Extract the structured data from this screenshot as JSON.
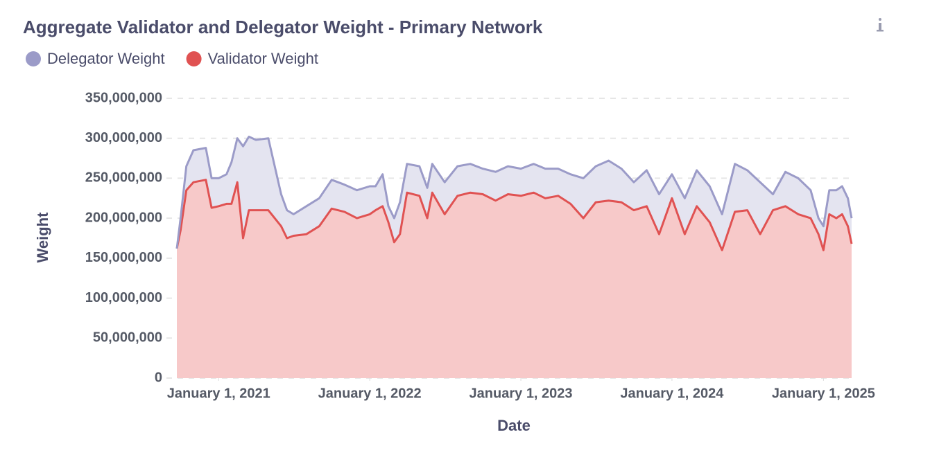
{
  "chart_data": {
    "type": "stacked_area",
    "title": "Aggregate Validator and Delegator Weight - Primary Network",
    "xlabel": "Date",
    "ylabel": "Weight",
    "x": [
      "2020-09-22",
      "2020-10-01",
      "2020-10-15",
      "2020-11-01",
      "2020-12-01",
      "2020-12-15",
      "2021-01-01",
      "2021-01-20",
      "2021-02-01",
      "2021-02-15",
      "2021-03-01",
      "2021-03-15",
      "2021-04-01",
      "2021-05-01",
      "2021-06-01",
      "2021-06-15",
      "2021-07-01",
      "2021-08-01",
      "2021-09-01",
      "2021-10-01",
      "2021-11-01",
      "2021-12-01",
      "2022-01-01",
      "2022-01-15",
      "2022-02-01",
      "2022-02-15",
      "2022-03-01",
      "2022-03-15",
      "2022-04-01",
      "2022-05-01",
      "2022-05-20",
      "2022-06-01",
      "2022-07-01",
      "2022-08-01",
      "2022-09-01",
      "2022-10-01",
      "2022-11-01",
      "2022-12-01",
      "2023-01-01",
      "2023-02-01",
      "2023-03-01",
      "2023-04-01",
      "2023-05-01",
      "2023-06-01",
      "2023-07-01",
      "2023-08-01",
      "2023-09-01",
      "2023-10-01",
      "2023-11-01",
      "2023-12-01",
      "2024-01-01",
      "2024-02-01",
      "2024-03-01",
      "2024-04-01",
      "2024-05-01",
      "2024-06-01",
      "2024-07-01",
      "2024-08-01",
      "2024-09-01",
      "2024-10-01",
      "2024-11-01",
      "2024-12-01",
      "2024-12-20",
      "2025-01-01",
      "2025-01-15",
      "2025-02-01",
      "2025-02-15",
      "2025-03-01",
      "2025-03-10"
    ],
    "series": [
      {
        "name": "Delegator Weight",
        "color": "#9b9bc8",
        "fill": "#e4e4f0",
        "values": [
          0,
          15000000,
          30000000,
          40000000,
          40000000,
          37000000,
          35000000,
          37000000,
          52000000,
          55000000,
          115000000,
          92000000,
          88000000,
          90000000,
          40000000,
          35000000,
          27000000,
          35000000,
          35000000,
          36000000,
          34000000,
          35000000,
          35000000,
          30000000,
          40000000,
          20000000,
          30000000,
          40000000,
          36000000,
          37000000,
          38000000,
          36000000,
          40000000,
          37000000,
          36000000,
          32000000,
          36000000,
          35000000,
          34000000,
          36000000,
          37000000,
          34000000,
          37000000,
          50000000,
          45000000,
          50000000,
          42000000,
          35000000,
          45000000,
          50000000,
          30000000,
          45000000,
          45000000,
          45000000,
          45000000,
          60000000,
          50000000,
          65000000,
          20000000,
          43000000,
          45000000,
          35000000,
          20000000,
          30000000,
          30000000,
          35000000,
          35000000,
          35000000,
          32000000
        ]
      },
      {
        "name": "Validator Weight",
        "color": "#e05252",
        "fill": "#f7c9c9",
        "values": [
          162000000,
          185000000,
          235000000,
          245000000,
          248000000,
          213000000,
          215000000,
          218000000,
          218000000,
          245000000,
          175000000,
          210000000,
          210000000,
          210000000,
          190000000,
          175000000,
          178000000,
          180000000,
          190000000,
          212000000,
          208000000,
          200000000,
          205000000,
          210000000,
          215000000,
          195000000,
          170000000,
          180000000,
          232000000,
          228000000,
          200000000,
          232000000,
          205000000,
          228000000,
          232000000,
          230000000,
          222000000,
          230000000,
          228000000,
          232000000,
          225000000,
          228000000,
          218000000,
          200000000,
          220000000,
          222000000,
          220000000,
          210000000,
          215000000,
          180000000,
          225000000,
          180000000,
          215000000,
          195000000,
          160000000,
          208000000,
          210000000,
          180000000,
          210000000,
          215000000,
          205000000,
          200000000,
          180000000,
          160000000,
          205000000,
          200000000,
          205000000,
          190000000,
          168000000
        ]
      }
    ],
    "xlim": [
      "2020-09-22",
      "2025-03-10"
    ],
    "xticks": [
      {
        "value": "2021-01-01",
        "label": "January 1, 2021"
      },
      {
        "value": "2022-01-01",
        "label": "January 1, 2022"
      },
      {
        "value": "2023-01-01",
        "label": "January 1, 2023"
      },
      {
        "value": "2024-01-01",
        "label": "January 1, 2024"
      },
      {
        "value": "2025-01-01",
        "label": "January 1, 2025"
      }
    ],
    "ylim": [
      0,
      350000000
    ],
    "yticks": [
      0,
      {
        "value": 50000000,
        "label": "50,000,000"
      },
      {
        "value": 100000000,
        "label": "100,000,000"
      },
      {
        "value": 150000000,
        "label": "150,000,000"
      },
      {
        "value": 200000000,
        "label": "200,000,000"
      },
      {
        "value": 250000000,
        "label": "250,000,000"
      },
      {
        "value": 300000000,
        "label": "300,000,000"
      },
      {
        "value": 350000000,
        "label": "350,000,000"
      }
    ],
    "grid": true,
    "legend": "top-left"
  }
}
